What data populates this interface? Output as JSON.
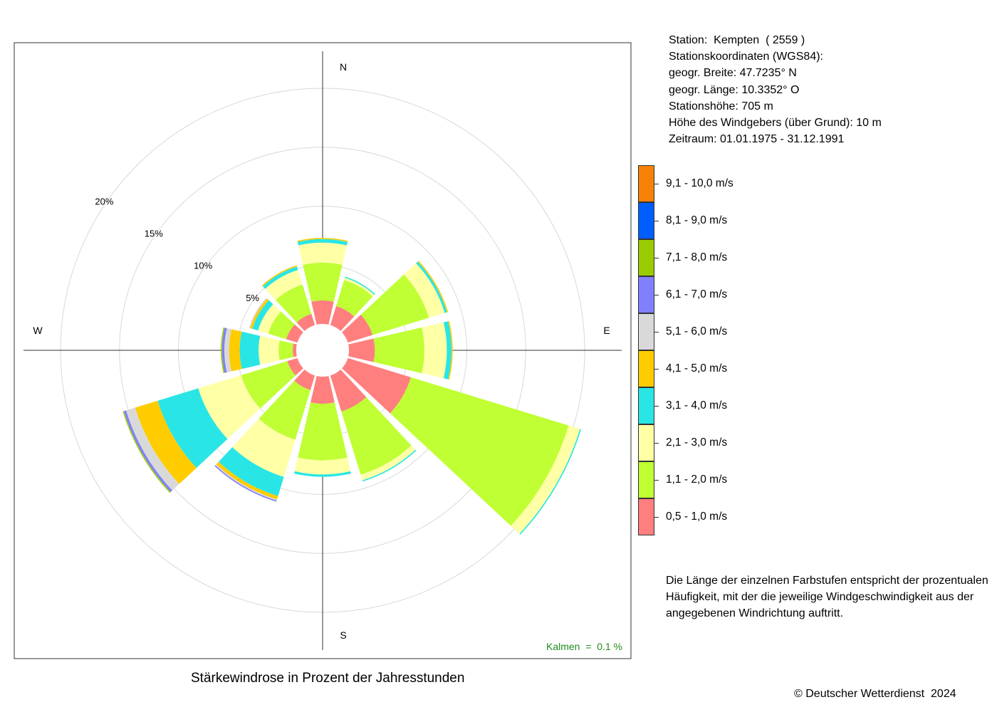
{
  "info": {
    "station": "Station:  Kempten  ( 2559 )",
    "coords_heading": "Stationskoordinaten (WGS84):",
    "latitude": "geogr. Breite: 47.7235° N",
    "longitude": "geogr. Länge: 10.3352° O",
    "elevation": "Stationshöhe: 705 m",
    "anemometer_height": "Höhe des Windgebers (über Grund): 10 m",
    "period": "Zeitraum: 01.01.1975 - 31.12.1991"
  },
  "note": "Die Länge der einzelnen Farbstufen entspricht der prozentualen Häufigkeit, mit der die jeweilige Windgeschwindigkeit aus der angegebenen Windrichtung auftritt.",
  "caption": "Stärkewindrose in Prozent der Jahresstunden",
  "copyright": "© Deutscher Wetterdienst  2024",
  "chart_data": {
    "type": "wind-rose",
    "title": "Stärkewindrose in Prozent der Jahresstunden",
    "compass_labels": {
      "N": "N",
      "E": "E",
      "S": "S",
      "W": "W"
    },
    "ring_labels": [
      "5%",
      "10%",
      "15%",
      "20%"
    ],
    "ring_values": [
      5,
      10,
      15,
      20
    ],
    "calm_label": "Kalmen  =  0.1 %",
    "calm_color": "#228b22",
    "directions_deg": [
      0,
      30,
      60,
      90,
      120,
      150,
      180,
      210,
      240,
      270,
      300,
      330
    ],
    "speed_classes": [
      {
        "label": "0,5 - 1,0 m/s",
        "color": "#ff7f7f"
      },
      {
        "label": "1,1 - 2,0 m/s",
        "color": "#bfff33"
      },
      {
        "label": "2,1 - 3,0 m/s",
        "color": "#ffffa6"
      },
      {
        "label": "3,1 - 4,0 m/s",
        "color": "#2ae5e5"
      },
      {
        "label": "4,1 - 5,0 m/s",
        "color": "#ffcc00"
      },
      {
        "label": "5,1 - 6,0 m/s",
        "color": "#d9d9d9"
      },
      {
        "label": "6,1 - 7,0 m/s",
        "color": "#8080ff"
      },
      {
        "label": "7,1 - 8,0 m/s",
        "color": "#99cc00"
      },
      {
        "label": "8,1 - 9,0 m/s",
        "color": "#005eff"
      },
      {
        "label": "9,1 - 10,0 m/s",
        "color": "#f58205"
      }
    ],
    "frequencies_percent": [
      [
        2.0,
        3.2,
        1.7,
        0.3,
        0.1,
        0.0,
        0.0,
        0.0,
        0.0,
        0.0
      ],
      [
        1.7,
        2.3,
        0.2,
        0.1,
        0.0,
        0.0,
        0.0,
        0.0,
        0.0,
        0.0
      ],
      [
        2.2,
        5.0,
        1.4,
        0.2,
        0.1,
        0.0,
        0.0,
        0.0,
        0.0,
        0.0
      ],
      [
        2.2,
        4.2,
        1.9,
        0.4,
        0.1,
        0.0,
        0.0,
        0.0,
        0.0,
        0.0
      ],
      [
        5.6,
        14.0,
        1.0,
        0.1,
        0.0,
        0.0,
        0.0,
        0.0,
        0.0,
        0.0
      ],
      [
        3.2,
        5.6,
        0.5,
        0.1,
        0.0,
        0.0,
        0.0,
        0.0,
        0.0,
        0.0
      ],
      [
        2.3,
        4.8,
        1.2,
        0.2,
        0.0,
        0.0,
        0.0,
        0.0,
        0.0,
        0.0
      ],
      [
        1.3,
        4.4,
        3.3,
        1.7,
        0.3,
        0.1,
        0.1,
        0.0,
        0.0,
        0.0
      ],
      [
        0.9,
        4.1,
        3.8,
        3.6,
        2.0,
        0.8,
        0.2,
        0.1,
        0.0,
        0.0
      ],
      [
        0.3,
        1.2,
        1.7,
        1.6,
        0.9,
        0.4,
        0.2,
        0.1,
        0.0,
        0.0
      ],
      [
        1.0,
        1.6,
        0.9,
        0.5,
        0.2,
        0.1,
        0.0,
        0.0,
        0.0,
        0.0
      ],
      [
        1.0,
        2.6,
        1.3,
        0.3,
        0.1,
        0.0,
        0.0,
        0.0,
        0.0,
        0.0
      ]
    ]
  }
}
